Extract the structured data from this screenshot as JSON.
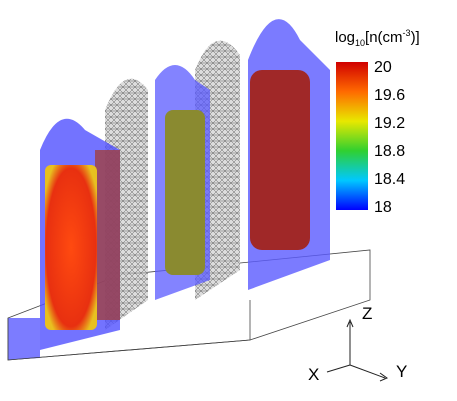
{
  "colorbar": {
    "title_log": "log",
    "title_base": "10",
    "title_main": "[n(cm",
    "title_exp": "-3",
    "title_end": ")]",
    "ticks": [
      20,
      19.6,
      19.2,
      18.8,
      18.4,
      18
    ]
  },
  "axes": {
    "z": "Z",
    "x": "X",
    "y": "Y"
  }
}
